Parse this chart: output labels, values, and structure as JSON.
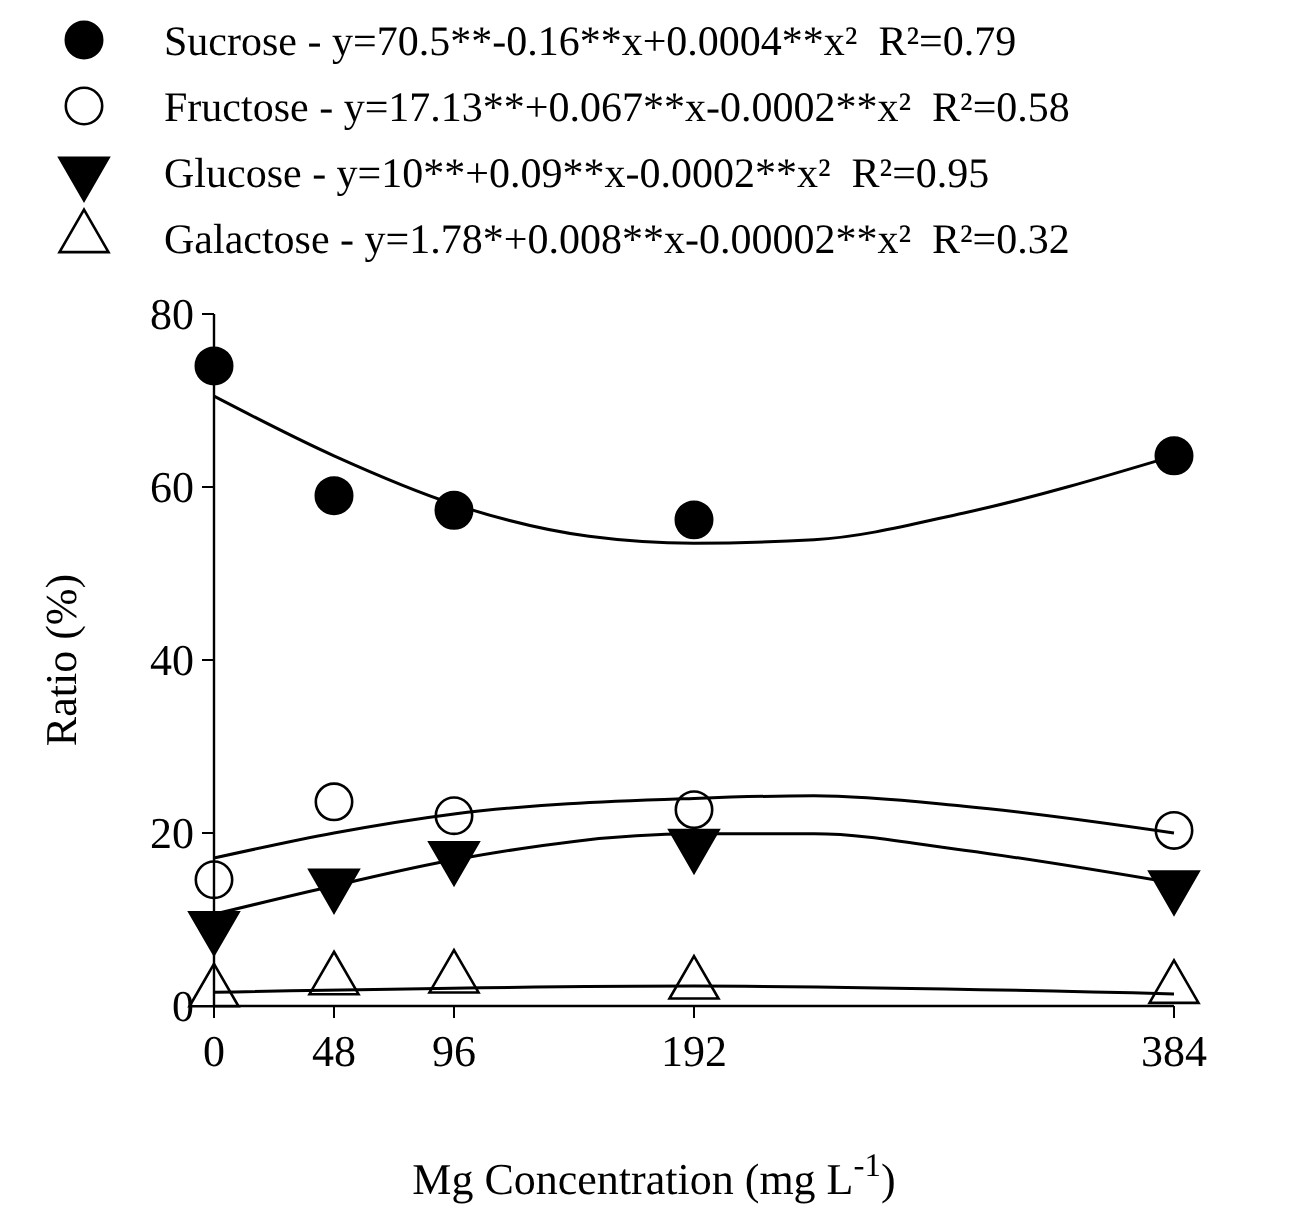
{
  "chart_data": {
    "type": "scatter",
    "xlabel": "Mg Concentration (mg L$^{-1}$)",
    "ylabel": "Ratio (%)",
    "xlim": [
      0,
      384
    ],
    "xticks": [
      0,
      48,
      96,
      192,
      384
    ],
    "ylim": [
      0,
      80
    ],
    "yticks": [
      0,
      20,
      40,
      60,
      80
    ],
    "grid": false,
    "legend": "top left",
    "series": [
      {
        "name": "Sucrose - y=70.5**-0.16**x+0.0004**x²  R²=0.79",
        "marker": "circle",
        "color": "#000000",
        "x": [
          0,
          48,
          96,
          192,
          384
        ],
        "values": [
          74,
          59,
          57.3,
          56.2,
          63.6
        ]
      },
      {
        "name": "Fructose - y=17.13**+0.067**x-0.0002**x²  R²=0.58",
        "marker": "circle-open",
        "color": "#000000",
        "x": [
          0,
          48,
          96,
          192,
          384
        ],
        "values": [
          14.6,
          23.6,
          22,
          22.7,
          20.3
        ]
      },
      {
        "name": "Glucose - y=10**+0.09**x-0.0002**x²  R²=0.95",
        "marker": "triangle-down",
        "color": "#000000",
        "x": [
          0,
          48,
          96,
          192,
          384
        ],
        "values": [
          9.2,
          14.1,
          17.3,
          18.7,
          13.9
        ]
      },
      {
        "name": "Galactose - y=1.78*+0.008**x-0.00002**x²  R²=0.32",
        "marker": "triangle-open",
        "color": "#000000",
        "x": [
          0,
          48,
          96,
          192,
          384
        ],
        "values": [
          1.6,
          3,
          3.2,
          2.5,
          2
        ]
      },
      {
        "type": "line",
        "marker": "none",
        "color": "#000000",
        "x": [
          0,
          48,
          96,
          150,
          192,
          240,
          300,
          384
        ],
        "values": [
          70.5,
          63.6,
          58,
          54.3,
          53.5,
          53.9,
          57,
          63.6
        ]
      },
      {
        "type": "line",
        "marker": "none",
        "color": "#000000",
        "x": [
          0,
          48,
          96,
          192,
          240,
          300,
          384
        ],
        "values": [
          17.1,
          20,
          22.2,
          24,
          24.3,
          23.1,
          20
        ]
      },
      {
        "type": "line",
        "marker": "none",
        "color": "#000000",
        "x": [
          0,
          48,
          96,
          192,
          240,
          300,
          384
        ],
        "values": [
          10.6,
          13.9,
          16.9,
          19.9,
          19.9,
          18,
          14.2
        ]
      },
      {
        "type": "line",
        "marker": "none",
        "color": "#000000",
        "x": [
          0,
          192,
          384
        ],
        "values": [
          1.6,
          2.3,
          1.4
        ]
      }
    ]
  }
}
